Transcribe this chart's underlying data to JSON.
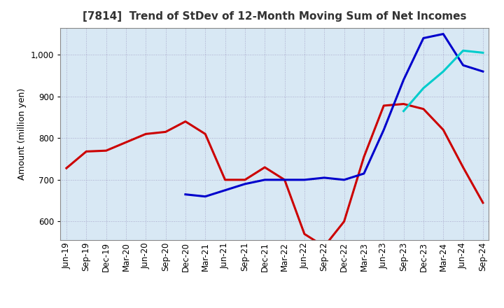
{
  "title": "[7814]  Trend of StDev of 12-Month Moving Sum of Net Incomes",
  "ylabel": "Amount (million yen)",
  "background_color": "#d8e8f4",
  "grid_color": "#aaaacc",
  "ylim": [
    555,
    1065
  ],
  "yticks": [
    600,
    700,
    800,
    900,
    1000
  ],
  "line_colors": {
    "3y": "#cc0000",
    "5y": "#0000cc",
    "7y": "#00cccc",
    "10y": "#006600"
  },
  "x_labels": [
    "Jun-19",
    "Sep-19",
    "Dec-19",
    "Mar-20",
    "Jun-20",
    "Sep-20",
    "Dec-20",
    "Mar-21",
    "Jun-21",
    "Sep-21",
    "Dec-21",
    "Mar-22",
    "Jun-22",
    "Sep-22",
    "Dec-22",
    "Mar-23",
    "Jun-23",
    "Sep-23",
    "Dec-23",
    "Mar-24",
    "Jun-24",
    "Sep-24"
  ],
  "data_3y": [
    728,
    768,
    770,
    790,
    810,
    815,
    840,
    810,
    700,
    700,
    730,
    700,
    570,
    540,
    600,
    755,
    878,
    882,
    870,
    820,
    730,
    645
  ],
  "data_5y": [
    null,
    null,
    null,
    null,
    null,
    null,
    665,
    660,
    675,
    690,
    700,
    700,
    700,
    705,
    700,
    715,
    820,
    940,
    1040,
    1050,
    975,
    960
  ],
  "data_7y": [
    null,
    null,
    null,
    null,
    null,
    null,
    null,
    null,
    null,
    null,
    null,
    null,
    null,
    null,
    null,
    null,
    null,
    865,
    920,
    960,
    1010,
    1005
  ],
  "data_10y": [
    null,
    null,
    null,
    null,
    null,
    null,
    null,
    null,
    null,
    null,
    null,
    null,
    null,
    null,
    null,
    null,
    null,
    null,
    null,
    null,
    null,
    null
  ],
  "title_fontsize": 11,
  "axis_label_fontsize": 9,
  "tick_fontsize": 8.5
}
